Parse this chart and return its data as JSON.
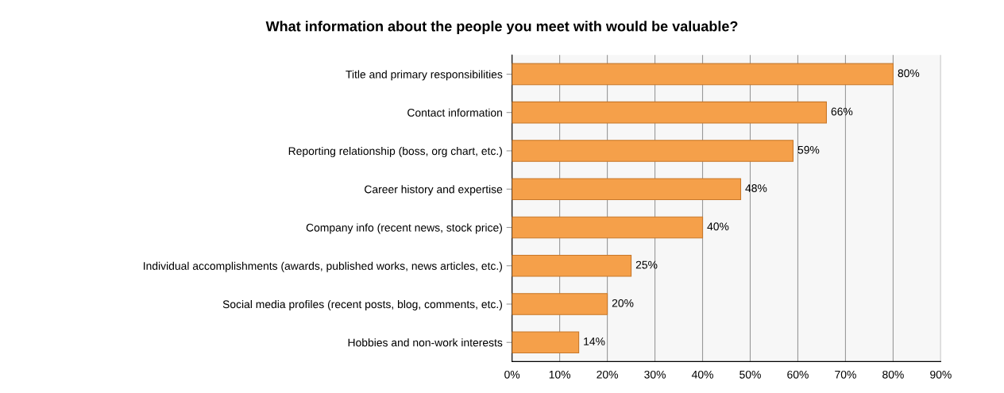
{
  "chart_data": {
    "type": "bar",
    "orientation": "horizontal",
    "title": "What information about the people you meet with would be valuable?",
    "categories": [
      "Title and primary responsibilities",
      "Contact information",
      "Reporting relationship (boss, org chart, etc.)",
      "Career history and expertise",
      "Company info (recent news, stock price)",
      "Individual accomplishments (awards, published works, news articles, etc.)",
      "Social media profiles (recent posts, blog, comments, etc.)",
      "Hobbies and non-work interests"
    ],
    "values": [
      80,
      66,
      59,
      48,
      40,
      25,
      20,
      14
    ],
    "value_labels": [
      "80%",
      "66%",
      "59%",
      "48%",
      "40%",
      "25%",
      "20%",
      "14%"
    ],
    "color": "#f5a04a",
    "xlim": [
      0,
      90
    ],
    "xticks": [
      {
        "value": 0,
        "label": "0%"
      },
      {
        "value": 10,
        "label": "10%"
      },
      {
        "value": 20,
        "label": "20%"
      },
      {
        "value": 30,
        "label": "30%"
      },
      {
        "value": 40,
        "label": "40%"
      },
      {
        "value": 50,
        "label": "50%"
      },
      {
        "value": 60,
        "label": "60%"
      },
      {
        "value": 70,
        "label": "70%"
      },
      {
        "value": 80,
        "label": "80%"
      },
      {
        "value": 90,
        "label": "90%"
      }
    ],
    "grid": "x"
  }
}
